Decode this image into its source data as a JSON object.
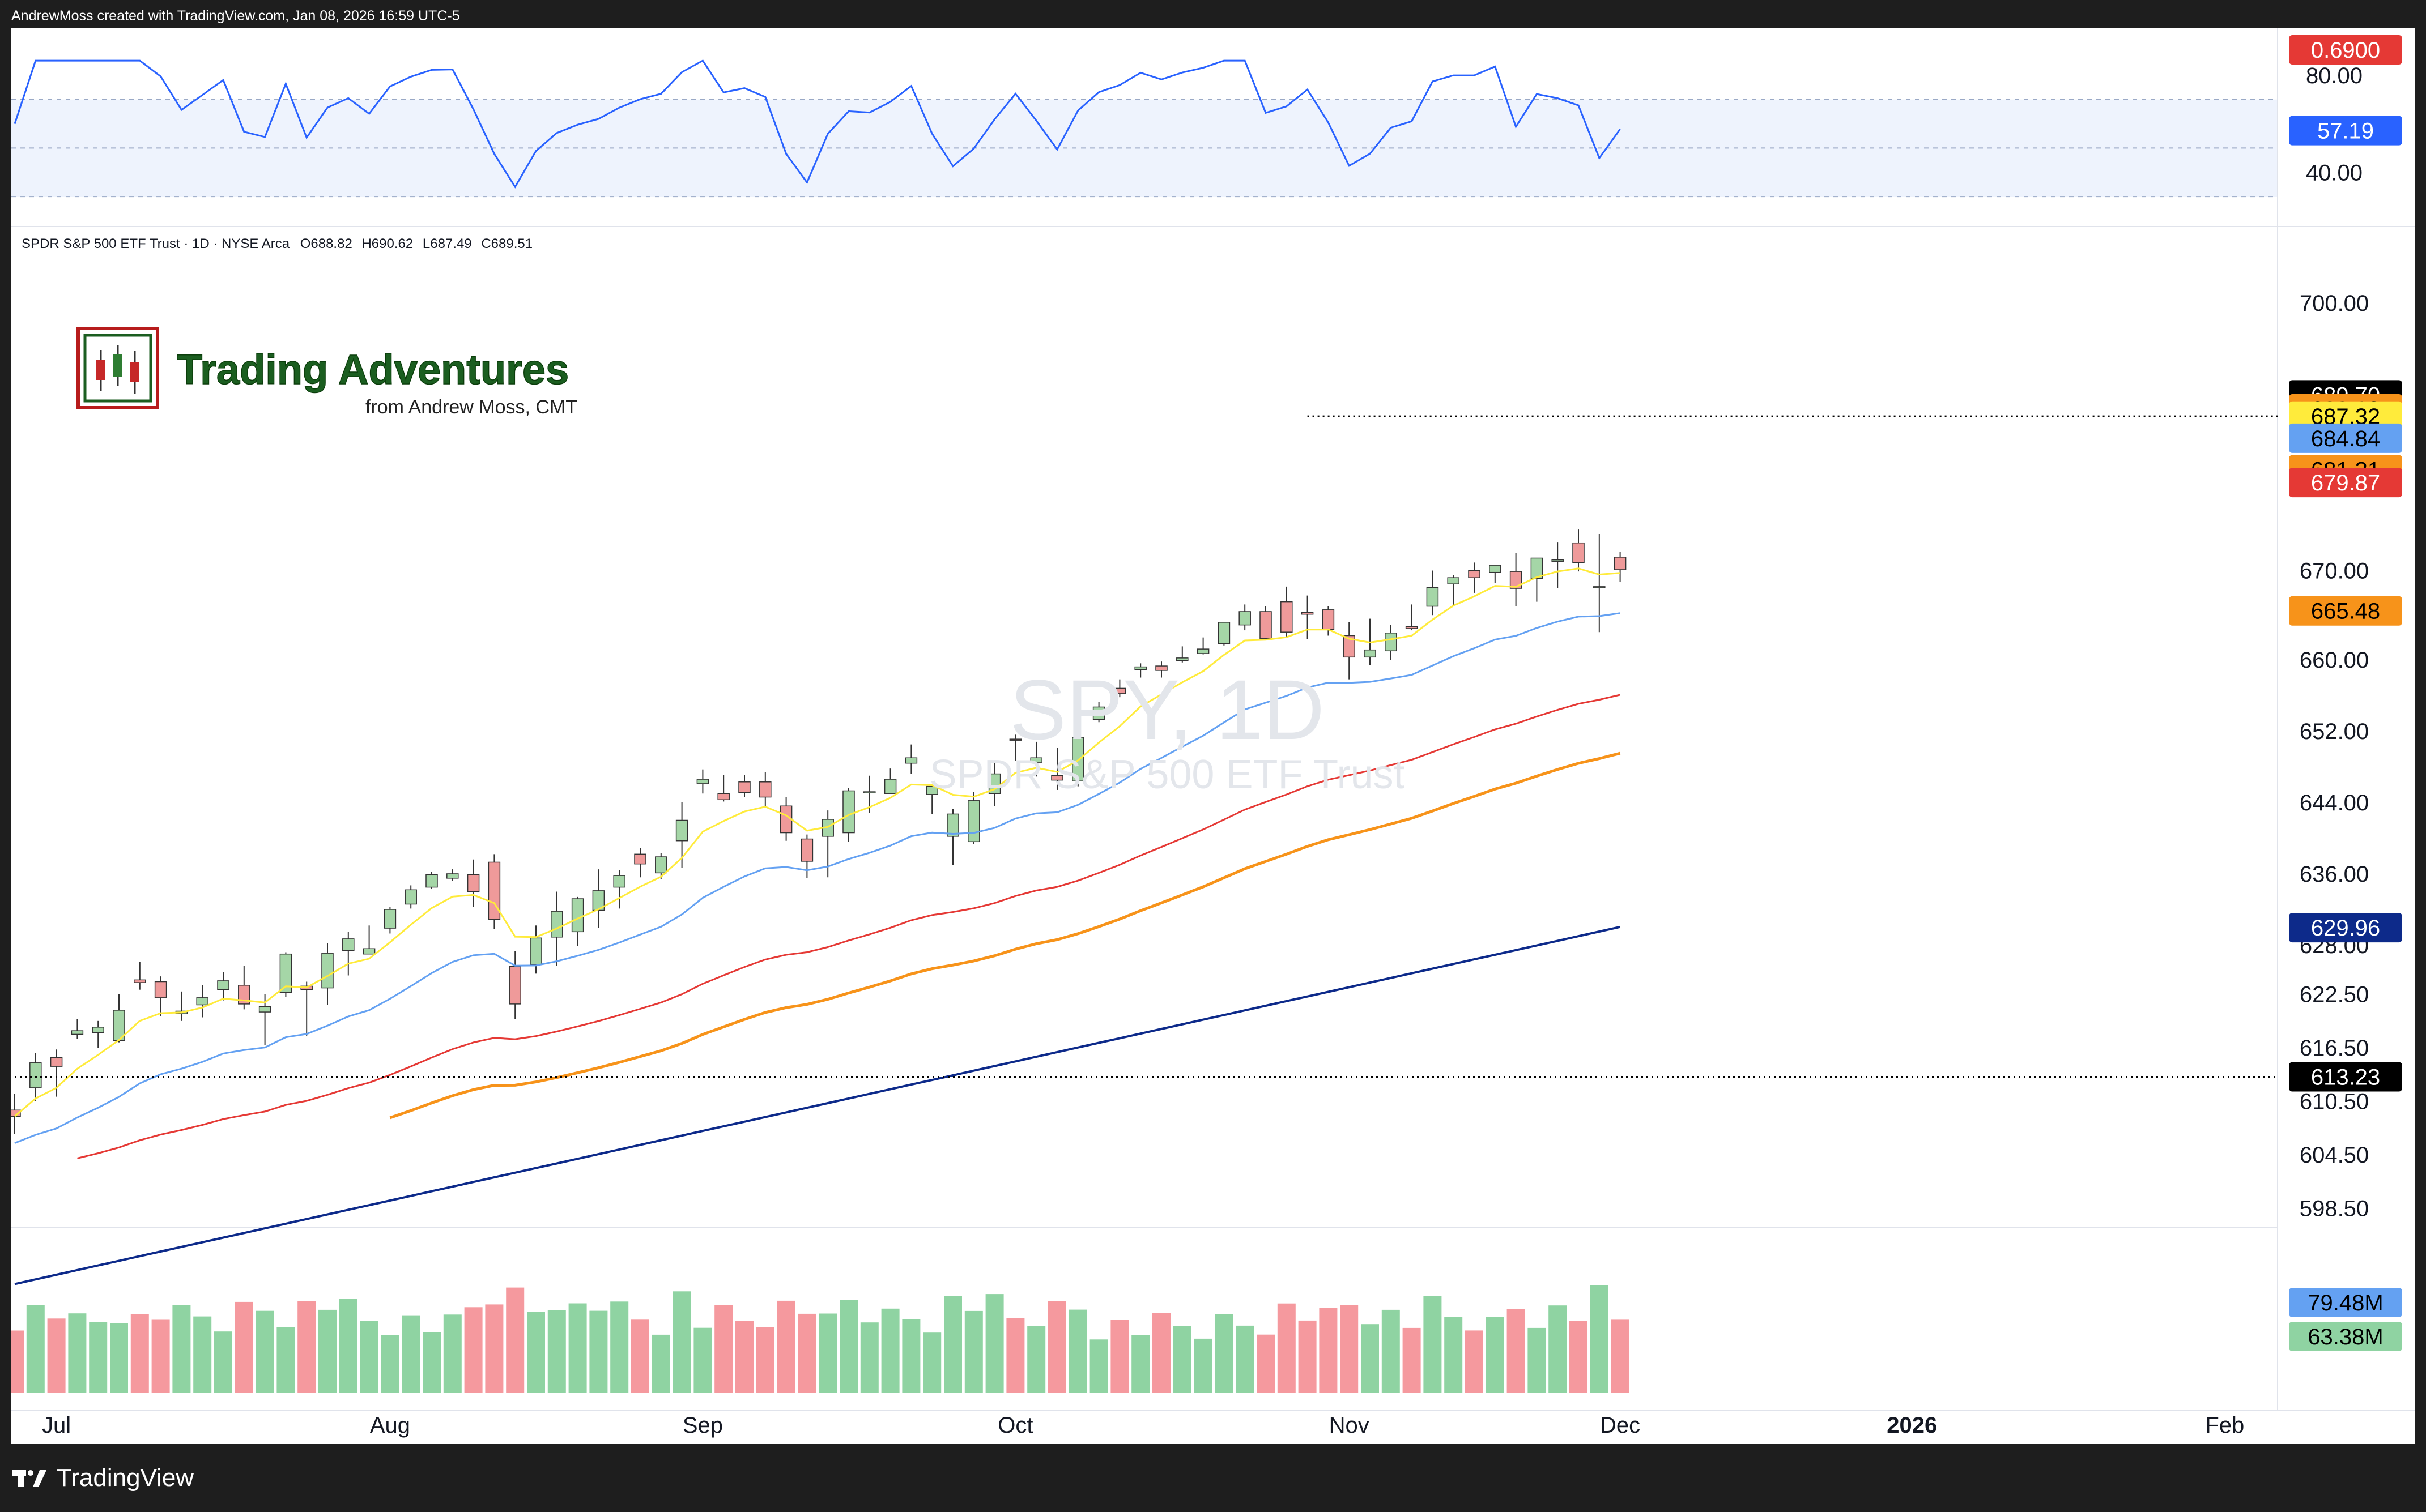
{
  "header": {
    "attribution": "AndrewMoss created with TradingView.com, Jan 08, 2026 16:59 UTC-5"
  },
  "footer": {
    "brand": "TradingView",
    "logo_icon": "tradingview-logo-icon"
  },
  "logo": {
    "title": "Trading Adventures",
    "subtitle": "from Andrew Moss, CMT",
    "icon": "candlestick-logo-icon"
  },
  "symbol_info": {
    "legend": "SPDR S&P 500 ETF Trust · 1D · NYSE Arca",
    "open": "O688.82",
    "high": "H690.62",
    "low": "L687.49",
    "close": "C689.51"
  },
  "watermark": {
    "ticker": "SPY, 1D",
    "name": "SPDR S&P 500 ETF Trust"
  },
  "colors": {
    "up_candle": "#a5d6a7",
    "down_candle": "#ef9a9a",
    "ema_yellow": "#ffeb3b",
    "ma_blue": "#64a1f2",
    "ma_orange": "#f7931a",
    "ma_red": "#e53935",
    "ma_darkblue": "#0d2a8a",
    "rsi_line": "#2962ff",
    "volume_up": "#8fd3a2",
    "volume_down": "#f5999e",
    "td9_marker": "#f7931a"
  },
  "chart_data": {
    "type": "candlestick",
    "price_axis": {
      "range": [
        596.5,
        703.5
      ],
      "ticks": [
        "700.00",
        "670.00",
        "660.00",
        "652.00",
        "644.00",
        "636.00",
        "628.00",
        "622.50",
        "616.50",
        "610.50",
        "604.50",
        "598.50"
      ],
      "tick_values": [
        700,
        670,
        660,
        652,
        644,
        636,
        628,
        622.5,
        616.5,
        610.5,
        604.5,
        598.5
      ]
    },
    "price_labels": [
      {
        "text": "689.70",
        "value": 689.7,
        "bg": "#000000",
        "fg": "#ffffff"
      },
      {
        "text": "688.13",
        "value": 688.13,
        "bg": "#f7931a",
        "fg": "#000000"
      },
      {
        "text": "687.32",
        "value": 687.32,
        "bg": "#ffeb3b",
        "fg": "#000000"
      },
      {
        "text": "684.84",
        "value": 684.84,
        "bg": "#64a1f2",
        "fg": "#000000"
      },
      {
        "text": "681.31",
        "value": 681.31,
        "bg": "#f7931a",
        "fg": "#000000"
      },
      {
        "text": "679.87",
        "value": 679.87,
        "bg": "#e53935",
        "fg": "#ffffff"
      },
      {
        "text": "665.48",
        "value": 665.48,
        "bg": "#f7931a",
        "fg": "#000000"
      },
      {
        "text": "629.96",
        "value": 629.96,
        "bg": "#0d2a8a",
        "fg": "#ffffff"
      },
      {
        "text": "613.23",
        "value": 613.23,
        "bg": "#000000",
        "fg": "#ffffff"
      }
    ],
    "horizontal_lines": [
      {
        "value": 687.3,
        "style": "dotted",
        "from_bar": 62
      },
      {
        "value": 613.23,
        "style": "dotted",
        "from_bar": 0
      }
    ],
    "x_axis": {
      "labels": [
        {
          "text": "Jul",
          "bar": 2,
          "bold": false
        },
        {
          "text": "Aug",
          "bar": 18,
          "bold": false
        },
        {
          "text": "Sep",
          "bar": 33,
          "bold": false
        },
        {
          "text": "Oct",
          "bar": 48,
          "bold": false
        },
        {
          "text": "Nov",
          "bar": 64,
          "bold": false
        },
        {
          "text": "Dec",
          "bar": 77,
          "bold": false
        },
        {
          "text": "2026",
          "bar": 91,
          "bold": true
        },
        {
          "text": "Feb",
          "bar": 106,
          "bold": false
        }
      ]
    },
    "candles": [
      [
        609.5,
        611.3,
        606.8,
        608.8
      ],
      [
        612.0,
        615.9,
        610.5,
        614.8
      ],
      [
        615.4,
        616.3,
        611.0,
        614.4
      ],
      [
        618.0,
        619.7,
        617.5,
        618.4
      ],
      [
        618.2,
        619.5,
        616.5,
        618.8
      ],
      [
        617.3,
        622.5,
        617.1,
        620.7
      ],
      [
        624.1,
        626.1,
        623.0,
        623.8
      ],
      [
        623.9,
        624.5,
        620.0,
        622.1
      ],
      [
        620.3,
        622.8,
        619.5,
        620.6
      ],
      [
        621.3,
        623.5,
        619.9,
        622.1
      ],
      [
        623.0,
        625.0,
        621.8,
        624.0
      ],
      [
        623.5,
        625.7,
        620.8,
        621.4
      ],
      [
        620.5,
        622.5,
        616.8,
        621.1
      ],
      [
        622.7,
        627.2,
        622.2,
        627.0
      ],
      [
        623.4,
        623.9,
        617.8,
        623.0
      ],
      [
        623.2,
        628.2,
        621.3,
        627.1
      ],
      [
        627.4,
        629.5,
        624.6,
        628.7
      ],
      [
        627.0,
        630.2,
        627.0,
        627.6
      ],
      [
        629.9,
        632.3,
        629.3,
        632.0
      ],
      [
        632.6,
        634.7,
        632.1,
        634.2
      ],
      [
        634.5,
        636.2,
        634.3,
        635.9
      ],
      [
        635.5,
        636.5,
        635.2,
        636.0
      ],
      [
        635.9,
        637.6,
        632.3,
        634.0
      ],
      [
        637.3,
        638.2,
        629.8,
        630.9
      ],
      [
        625.6,
        627.3,
        619.7,
        621.4
      ],
      [
        625.8,
        630.2,
        624.8,
        628.8
      ],
      [
        628.9,
        634.0,
        625.7,
        631.8
      ],
      [
        629.5,
        633.4,
        627.9,
        633.2
      ],
      [
        631.9,
        636.5,
        629.9,
        634.1
      ],
      [
        634.5,
        636.4,
        632.1,
        635.8
      ],
      [
        638.2,
        638.9,
        635.6,
        637.1
      ],
      [
        636.1,
        638.3,
        635.4,
        637.9
      ],
      [
        639.7,
        644.0,
        636.7,
        642.0
      ],
      [
        646.1,
        647.7,
        645.0,
        646.6
      ],
      [
        645.0,
        647.1,
        644.1,
        644.3
      ],
      [
        646.3,
        647.1,
        644.6,
        645.1
      ],
      [
        646.3,
        647.4,
        643.6,
        644.6
      ],
      [
        643.6,
        644.6,
        639.7,
        640.6
      ],
      [
        639.9,
        640.4,
        635.5,
        637.4
      ],
      [
        640.2,
        643.1,
        635.6,
        642.1
      ],
      [
        640.6,
        645.6,
        639.6,
        645.3
      ],
      [
        645.1,
        647.0,
        642.8,
        645.2
      ],
      [
        645.0,
        647.8,
        645.0,
        646.6
      ],
      [
        648.4,
        650.5,
        647.2,
        649.0
      ],
      [
        644.9,
        645.9,
        642.7,
        645.8
      ],
      [
        640.2,
        643.3,
        637.0,
        642.7
      ],
      [
        639.6,
        645.2,
        639.3,
        644.2
      ],
      [
        645.0,
        648.7,
        643.6,
        647.2
      ],
      [
        651.1,
        651.6,
        648.7,
        651.0
      ],
      [
        648.5,
        650.8,
        646.9,
        649.0
      ],
      [
        647.0,
        650.1,
        645.4,
        646.5
      ],
      [
        646.4,
        651.4,
        645.8,
        651.3
      ],
      [
        653.3,
        655.3,
        653.0,
        654.7
      ],
      [
        656.8,
        657.8,
        655.8,
        656.2
      ],
      [
        658.9,
        659.6,
        658.0,
        659.2
      ],
      [
        659.3,
        659.8,
        658.0,
        658.8
      ],
      [
        659.9,
        661.5,
        659.7,
        660.2
      ],
      [
        660.7,
        662.5,
        660.6,
        661.2
      ],
      [
        661.8,
        664.2,
        661.6,
        664.2
      ],
      [
        663.9,
        666.2,
        663.3,
        665.4
      ],
      [
        665.4,
        666.0,
        662.3,
        662.4
      ],
      [
        666.5,
        668.2,
        662.5,
        663.1
      ],
      [
        665.3,
        667.2,
        662.3,
        665.1
      ],
      [
        665.6,
        666.0,
        662.7,
        663.4
      ],
      [
        662.7,
        664.2,
        657.8,
        660.3
      ],
      [
        660.3,
        664.6,
        659.4,
        661.1
      ],
      [
        661.0,
        663.9,
        660.0,
        663.0
      ],
      [
        663.7,
        666.2,
        663.3,
        663.5
      ],
      [
        666.0,
        670.0,
        665.0,
        668.1
      ],
      [
        668.5,
        669.5,
        666.0,
        669.2
      ],
      [
        670.0,
        670.9,
        667.5,
        669.2
      ],
      [
        669.8,
        670.5,
        668.6,
        670.6
      ],
      [
        669.9,
        672.0,
        666.0,
        668.0
      ],
      [
        669.1,
        671.4,
        666.5,
        671.4
      ],
      [
        671.0,
        673.2,
        668.0,
        671.2
      ],
      [
        673.1,
        674.6,
        669.9,
        670.9
      ],
      [
        668.2,
        674.1,
        663.1,
        668.2
      ],
      [
        671.5,
        672.1,
        668.7,
        670.1
      ]
    ],
    "indicators": {
      "rsi": {
        "value": "57.19",
        "ticks": [
          "80.00",
          "40.00"
        ],
        "tick_values": [
          80,
          40
        ],
        "band": [
          70,
          30
        ],
        "midline": 50,
        "top_label": "0.6900",
        "range": [
          20,
          90
        ]
      },
      "volume": {
        "labels": [
          "79.48M",
          "63.38M"
        ],
        "label_colors": [
          "#64a1f2",
          "#8fd3a2"
        ]
      }
    }
  }
}
